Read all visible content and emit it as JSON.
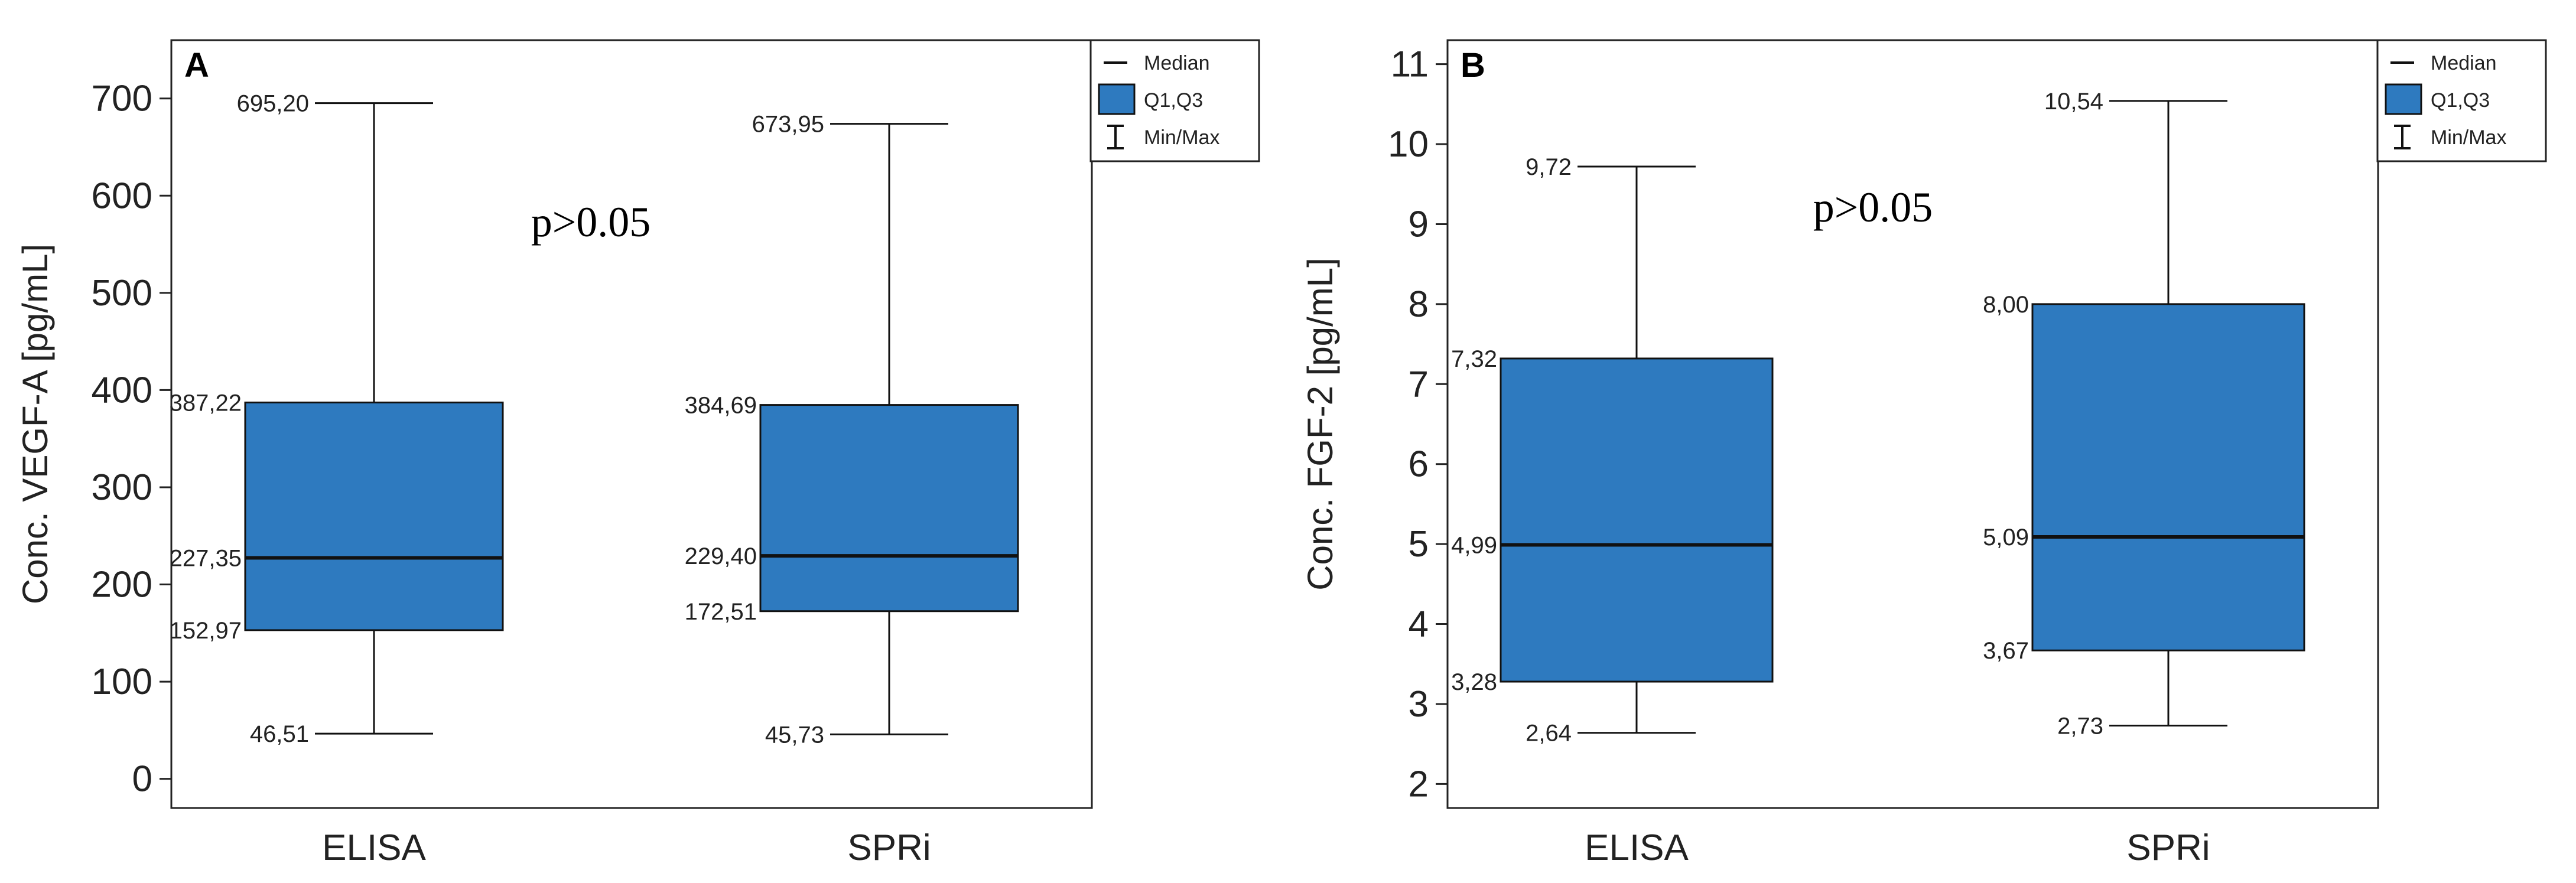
{
  "colors": {
    "box": "#2E7ABF",
    "stroke": "#111111",
    "axis": "#222222"
  },
  "legend_icons": [
    "median-line-icon",
    "q1q3-box-icon",
    "min-max-whisker-icon"
  ],
  "chart_data": [
    {
      "type": "box",
      "panel": "A",
      "ylabel": "Conc. VEGF-A [pg/mL]",
      "ylim": [
        -30,
        760
      ],
      "yticks": [
        0,
        100,
        200,
        300,
        400,
        500,
        600,
        700
      ],
      "ytick_labels": [
        "0",
        "100",
        "200",
        "300",
        "400",
        "500",
        "600",
        "700"
      ],
      "annotation": "p>0.05",
      "legend": [
        "Median",
        "Q1,Q3",
        "Min/Max"
      ],
      "categories": [
        "ELISA",
        "SPRi"
      ],
      "boxes": [
        {
          "category": "ELISA",
          "min": 46.51,
          "q1": 152.97,
          "median": 227.35,
          "q3": 387.22,
          "max": 695.2,
          "labels": {
            "min": "46,51",
            "q1": "152,97",
            "median": "227,35",
            "q3": "387,22",
            "max": "695,20"
          }
        },
        {
          "category": "SPRi",
          "min": 45.73,
          "q1": 172.51,
          "median": 229.4,
          "q3": 384.69,
          "max": 673.95,
          "labels": {
            "min": "45,73",
            "q1": "172,51",
            "median": "229,40",
            "q3": "384,69",
            "max": "673,95"
          }
        }
      ]
    },
    {
      "type": "box",
      "panel": "B",
      "ylabel": "Conc. FGF-2 [pg/mL]",
      "ylim": [
        1.7,
        11.3
      ],
      "yticks": [
        2,
        3,
        4,
        5,
        6,
        7,
        8,
        9,
        10,
        11
      ],
      "ytick_labels": [
        "2",
        "3",
        "4",
        "5",
        "6",
        "7",
        "8",
        "9",
        "10",
        "11"
      ],
      "annotation": "p>0.05",
      "legend": [
        "Median",
        "Q1,Q3",
        "Min/Max"
      ],
      "categories": [
        "ELISA",
        "SPRi"
      ],
      "boxes": [
        {
          "category": "ELISA",
          "min": 2.64,
          "q1": 3.28,
          "median": 4.99,
          "q3": 7.32,
          "max": 9.72,
          "labels": {
            "min": "2,64",
            "q1": "3,28",
            "median": "4,99",
            "q3": "7,32",
            "max": "9,72"
          }
        },
        {
          "category": "SPRi",
          "min": 2.73,
          "q1": 3.67,
          "median": 5.09,
          "q3": 8.0,
          "max": 10.54,
          "labels": {
            "min": "2,73",
            "q1": "3,67",
            "median": "5,09",
            "q3": "8,00",
            "max": "10,54"
          }
        }
      ]
    }
  ]
}
